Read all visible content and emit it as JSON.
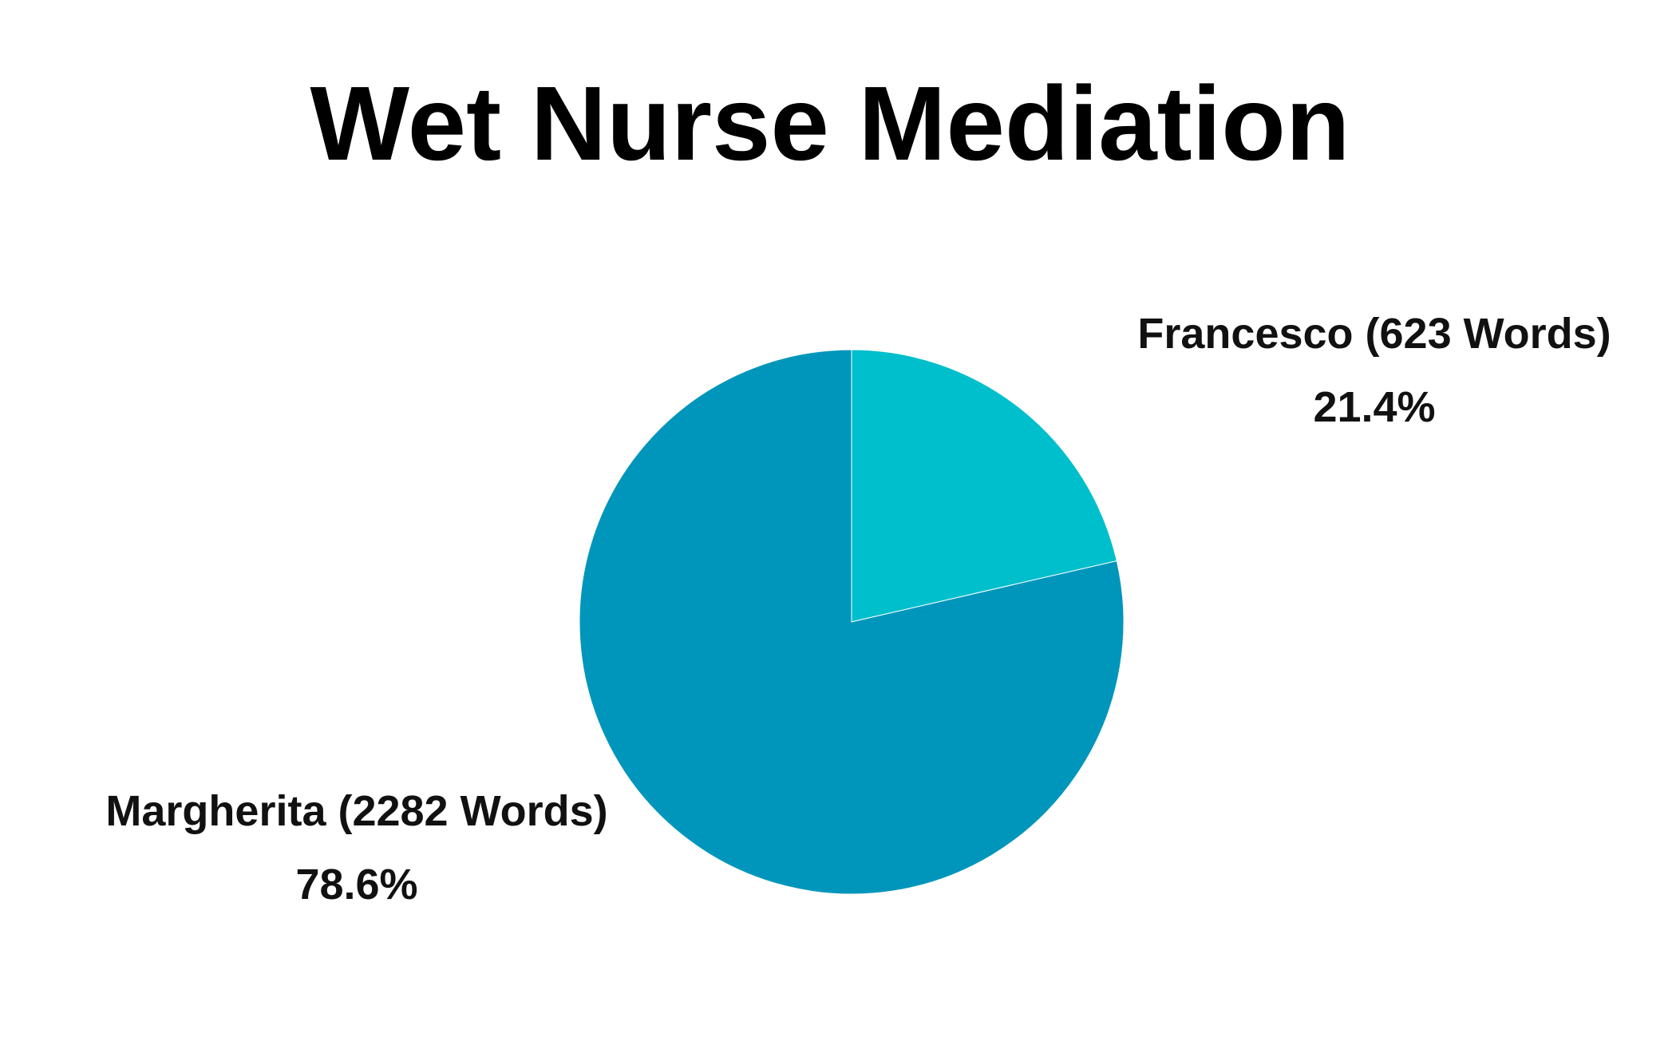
{
  "chart_data": {
    "type": "pie",
    "title": "Wet Nurse Mediation",
    "categories": [
      "Francesco (623 Words)",
      "Margherita (2282 Words)"
    ],
    "values": [
      21.4,
      78.6
    ],
    "value_labels": [
      "21.4%",
      "78.6%"
    ],
    "colors": [
      "#00bfcc",
      "#0096bc"
    ]
  }
}
